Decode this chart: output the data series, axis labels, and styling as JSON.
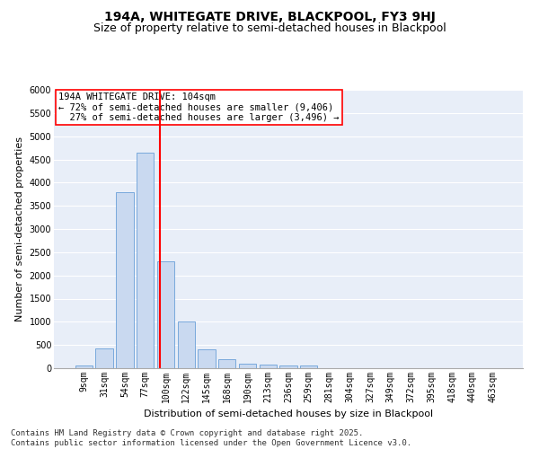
{
  "title": "194A, WHITEGATE DRIVE, BLACKPOOL, FY3 9HJ",
  "subtitle": "Size of property relative to semi-detached houses in Blackpool",
  "xlabel": "Distribution of semi-detached houses by size in Blackpool",
  "ylabel": "Number of semi-detached properties",
  "footnote": "Contains HM Land Registry data © Crown copyright and database right 2025.\nContains public sector information licensed under the Open Government Licence v3.0.",
  "bar_labels": [
    "9sqm",
    "31sqm",
    "54sqm",
    "77sqm",
    "100sqm",
    "122sqm",
    "145sqm",
    "168sqm",
    "190sqm",
    "213sqm",
    "236sqm",
    "259sqm",
    "281sqm",
    "304sqm",
    "327sqm",
    "349sqm",
    "372sqm",
    "395sqm",
    "418sqm",
    "440sqm",
    "463sqm"
  ],
  "bar_values": [
    50,
    430,
    3800,
    4650,
    2300,
    1000,
    400,
    200,
    100,
    75,
    65,
    50,
    0,
    0,
    0,
    0,
    0,
    0,
    0,
    0,
    0
  ],
  "bar_color": "#c9d9f0",
  "bar_edge_color": "#6a9fd8",
  "property_label": "194A WHITEGATE DRIVE: 104sqm",
  "pct_smaller": 72,
  "count_smaller": 9406,
  "pct_larger": 27,
  "count_larger": 3496,
  "vline_color": "red",
  "ylim": [
    0,
    6000
  ],
  "yticks": [
    0,
    500,
    1000,
    1500,
    2000,
    2500,
    3000,
    3500,
    4000,
    4500,
    5000,
    5500,
    6000
  ],
  "background_color": "#e8eef8",
  "grid_color": "white",
  "title_fontsize": 10,
  "subtitle_fontsize": 9,
  "axis_label_fontsize": 8,
  "tick_fontsize": 7,
  "annotation_fontsize": 7.5,
  "footnote_fontsize": 6.5
}
